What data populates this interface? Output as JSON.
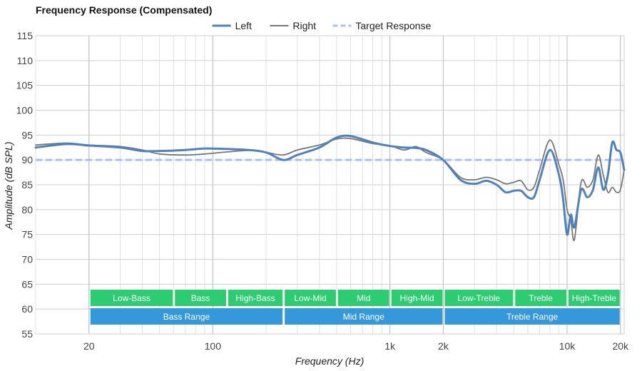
{
  "chart_data": {
    "type": "line",
    "title": "Frequency Response (Compensated)",
    "xlabel": "Frequency (Hz)",
    "ylabel": "Amplitude (dB SPL)",
    "x_scale": "log",
    "xlim": [
      10,
      21000
    ],
    "ylim": [
      55,
      115
    ],
    "x_ticks": [
      {
        "value": 20,
        "label": "20"
      },
      {
        "value": 100,
        "label": "100"
      },
      {
        "value": 1000,
        "label": "1k"
      },
      {
        "value": 2000,
        "label": "2k"
      },
      {
        "value": 10000,
        "label": "10k"
      },
      {
        "value": 20000,
        "label": "20k"
      }
    ],
    "y_ticks": [
      55,
      60,
      65,
      70,
      75,
      80,
      85,
      90,
      95,
      100,
      105,
      110,
      115
    ],
    "grid": true,
    "legend_position": "top-center",
    "series": [
      {
        "name": "Left",
        "color": "#4f81bd",
        "style": "solid",
        "points": [
          [
            10,
            92.5
          ],
          [
            15,
            93.2
          ],
          [
            20,
            92.9
          ],
          [
            30,
            92.5
          ],
          [
            40,
            91.8
          ],
          [
            50,
            91.8
          ],
          [
            70,
            92.0
          ],
          [
            90,
            92.3
          ],
          [
            120,
            92.2
          ],
          [
            160,
            92.0
          ],
          [
            200,
            91.5
          ],
          [
            250,
            90.0
          ],
          [
            300,
            91.0
          ],
          [
            400,
            92.5
          ],
          [
            500,
            94.5
          ],
          [
            600,
            94.8
          ],
          [
            800,
            93.5
          ],
          [
            1000,
            92.8
          ],
          [
            1200,
            92.5
          ],
          [
            1400,
            92.4
          ],
          [
            1600,
            92.0
          ],
          [
            2000,
            90.0
          ],
          [
            2500,
            86.0
          ],
          [
            3000,
            85.2
          ],
          [
            3500,
            85.8
          ],
          [
            4000,
            85.0
          ],
          [
            4500,
            83.5
          ],
          [
            5000,
            83.8
          ],
          [
            5500,
            83.8
          ],
          [
            6000,
            82.5
          ],
          [
            6500,
            82.5
          ],
          [
            7000,
            86.0
          ],
          [
            8000,
            92.0
          ],
          [
            9000,
            87.0
          ],
          [
            9500,
            82.0
          ],
          [
            10000,
            75.0
          ],
          [
            10500,
            79.0
          ],
          [
            11000,
            76.5
          ],
          [
            12000,
            84.0
          ],
          [
            13000,
            82.5
          ],
          [
            14000,
            84.0
          ],
          [
            15000,
            88.5
          ],
          [
            16000,
            84.0
          ],
          [
            17000,
            87.0
          ],
          [
            18000,
            93.5
          ],
          [
            19000,
            92.0
          ],
          [
            20000,
            91.5
          ],
          [
            21000,
            88.0
          ]
        ]
      },
      {
        "name": "Right",
        "color": "#777777",
        "style": "solid",
        "points": [
          [
            10,
            93.0
          ],
          [
            15,
            93.4
          ],
          [
            20,
            93.0
          ],
          [
            30,
            92.7
          ],
          [
            40,
            92.0
          ],
          [
            50,
            91.2
          ],
          [
            70,
            91.0
          ],
          [
            90,
            91.2
          ],
          [
            120,
            91.6
          ],
          [
            160,
            91.9
          ],
          [
            200,
            91.5
          ],
          [
            250,
            91.0
          ],
          [
            300,
            92.0
          ],
          [
            400,
            93.0
          ],
          [
            500,
            94.2
          ],
          [
            600,
            94.3
          ],
          [
            800,
            93.3
          ],
          [
            1000,
            92.9
          ],
          [
            1200,
            92.0
          ],
          [
            1400,
            92.7
          ],
          [
            1600,
            91.5
          ],
          [
            2000,
            90.0
          ],
          [
            2500,
            86.5
          ],
          [
            3000,
            86.0
          ],
          [
            3500,
            86.5
          ],
          [
            4000,
            86.0
          ],
          [
            4500,
            85.2
          ],
          [
            5000,
            85.5
          ],
          [
            5500,
            85.8
          ],
          [
            6000,
            84.0
          ],
          [
            6500,
            84.5
          ],
          [
            7000,
            88.0
          ],
          [
            8000,
            94.0
          ],
          [
            9000,
            89.0
          ],
          [
            9500,
            86.0
          ],
          [
            10000,
            80.0
          ],
          [
            10500,
            78.0
          ],
          [
            11000,
            74.0
          ],
          [
            12000,
            85.5
          ],
          [
            13000,
            84.5
          ],
          [
            14000,
            86.0
          ],
          [
            15000,
            91.0
          ],
          [
            16000,
            87.0
          ],
          [
            17000,
            83.5
          ],
          [
            18000,
            84.5
          ],
          [
            19000,
            83.5
          ],
          [
            20000,
            84.0
          ],
          [
            21000,
            88.0
          ]
        ]
      },
      {
        "name": "Target Response",
        "color": "#aabff5",
        "style": "dashed",
        "points": [
          [
            10,
            90
          ],
          [
            21000,
            90
          ]
        ]
      }
    ],
    "bands": [
      {
        "label": "Low-Bass",
        "start": 20,
        "end": 60,
        "row": 1,
        "color": "#2ecc71"
      },
      {
        "label": "Bass",
        "start": 60,
        "end": 120,
        "row": 1,
        "color": "#2ecc71"
      },
      {
        "label": "High-Bass",
        "start": 120,
        "end": 250,
        "row": 1,
        "color": "#2ecc71"
      },
      {
        "label": "Low-Mid",
        "start": 250,
        "end": 500,
        "row": 1,
        "color": "#2ecc71"
      },
      {
        "label": "Mid",
        "start": 500,
        "end": 1000,
        "row": 1,
        "color": "#2ecc71"
      },
      {
        "label": "High-Mid",
        "start": 1000,
        "end": 2000,
        "row": 1,
        "color": "#2ecc71"
      },
      {
        "label": "Low-Treble",
        "start": 2000,
        "end": 5000,
        "row": 1,
        "color": "#2ecc71"
      },
      {
        "label": "Treble",
        "start": 5000,
        "end": 10000,
        "row": 1,
        "color": "#2ecc71"
      },
      {
        "label": "High-Treble",
        "start": 10000,
        "end": 20000,
        "row": 1,
        "color": "#2ecc71"
      },
      {
        "label": "Bass Range",
        "start": 20,
        "end": 250,
        "row": 2,
        "color": "#3498db"
      },
      {
        "label": "Mid Range",
        "start": 250,
        "end": 2000,
        "row": 2,
        "color": "#3498db"
      },
      {
        "label": "Treble Range",
        "start": 2000,
        "end": 20000,
        "row": 2,
        "color": "#3498db"
      }
    ]
  }
}
